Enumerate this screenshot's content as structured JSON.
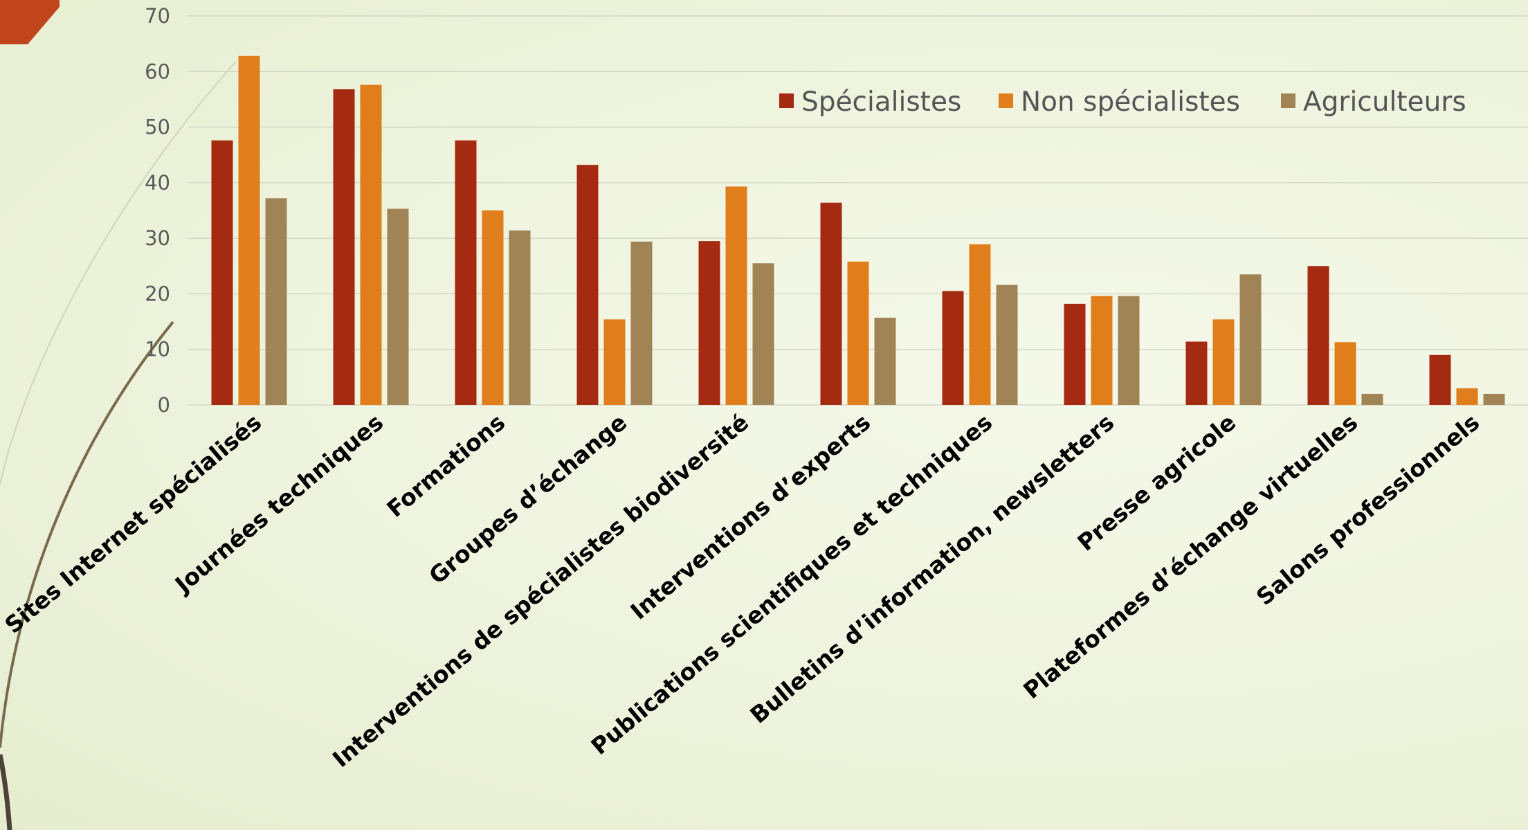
{
  "chart_data": {
    "type": "bar",
    "title": "",
    "xlabel": "",
    "ylabel": "",
    "ylim": [
      0,
      70
    ],
    "yticks": [
      0,
      10,
      20,
      30,
      40,
      50,
      60,
      70
    ],
    "grid": true,
    "legend_position": "top-right",
    "categories": [
      "Sites Internet spécialisés",
      "Journées techniques",
      "Formations",
      "Groupes d’échange",
      "Interventions de spécialistes biodiversité",
      "Interventions d’experts",
      "Publications scientifiques et techniques",
      "Bulletins d’information, newsletters",
      "Presse agricole",
      "Plateformes d’échange virtuelles",
      "Salons professionnels"
    ],
    "series": [
      {
        "name": "Spécialistes",
        "color": "#a52a12",
        "values": [
          47.6,
          56.8,
          47.6,
          43.2,
          29.5,
          36.4,
          20.5,
          18.2,
          11.4,
          25.0,
          9.0
        ]
      },
      {
        "name": "Non spécialistes",
        "color": "#e07e1b",
        "values": [
          62.8,
          57.6,
          35.0,
          15.4,
          39.3,
          25.8,
          28.9,
          19.6,
          15.4,
          11.3,
          3.0
        ]
      },
      {
        "name": "Agriculteurs",
        "color": "#a08455",
        "values": [
          37.2,
          35.3,
          31.4,
          29.4,
          25.5,
          15.7,
          21.6,
          19.6,
          23.5,
          2.0,
          2.0
        ]
      }
    ]
  },
  "theme": {
    "corner_accent": "#c0451c",
    "gridline": "#d3d7c4",
    "arc_color": "#7a6a4e"
  }
}
